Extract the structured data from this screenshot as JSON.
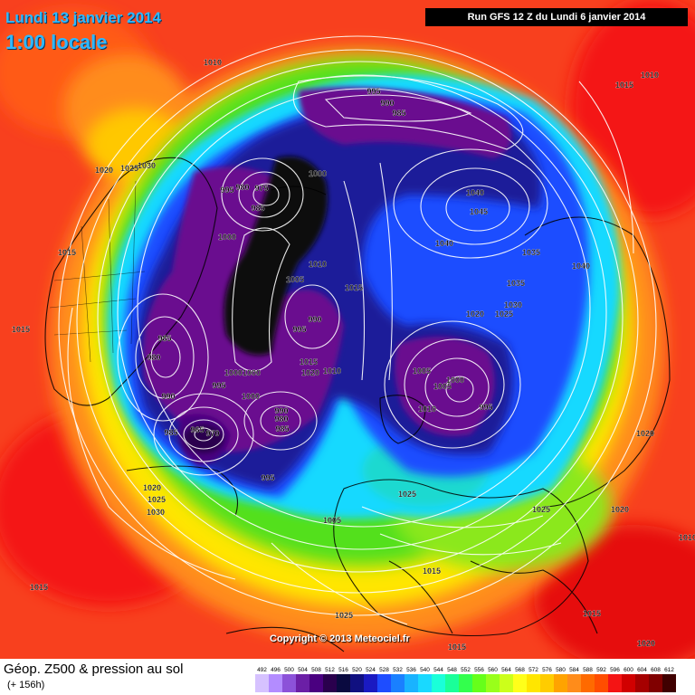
{
  "header": {
    "date": "Lundi 13 janvier 2014",
    "time": "1:00 locale",
    "run": "Run GFS 12 Z du Lundi 6 janvier 2014"
  },
  "copyright": "Copyright © 2013 Meteociel.fr",
  "footer": {
    "title": "Géop. Z500 & pression au sol",
    "subtitle": "(+ 156h)"
  },
  "colors": {
    "ocean_bg": "#f8401e",
    "red": "#f41414",
    "orange": "#ff8c1a",
    "yellow": "#ffe600",
    "green": "#52e01a",
    "cyan": "#19d9ff",
    "blue": "#1e4dff",
    "navy": "#1a1a99",
    "purple": "#6b0f8f",
    "black": "#0a0a0a"
  },
  "scale": {
    "labels": [
      "492",
      "496",
      "500",
      "504",
      "508",
      "512",
      "516",
      "520",
      "524",
      "528",
      "532",
      "536",
      "540",
      "544",
      "548",
      "552",
      "556",
      "560",
      "564",
      "568",
      "572",
      "576",
      "580",
      "584",
      "588",
      "592",
      "596",
      "600",
      "604",
      "608",
      "612"
    ],
    "colors": [
      "#d6c2ff",
      "#b38cff",
      "#8c52d9",
      "#6b1fa6",
      "#4a0080",
      "#2a004d",
      "#0a0a40",
      "#101080",
      "#1a1ac2",
      "#1e4dff",
      "#1a80ff",
      "#19b3ff",
      "#19d9ff",
      "#1affd9",
      "#1aff99",
      "#33ff4d",
      "#66ff1a",
      "#99ff1a",
      "#ccff1a",
      "#ffff1a",
      "#ffe600",
      "#ffcc00",
      "#ffa300",
      "#ff8c1a",
      "#ff6a00",
      "#ff4d00",
      "#f41414",
      "#d10000",
      "#a60000",
      "#800000",
      "#400000"
    ]
  },
  "pressure_labels": [
    {
      "text": "1010"
    },
    {
      "text": "1015"
    },
    {
      "text": "1010"
    },
    {
      "text": "995"
    },
    {
      "text": "990"
    },
    {
      "text": "985"
    },
    {
      "text": "1020"
    },
    {
      "text": "1025"
    },
    {
      "text": "1030"
    },
    {
      "text": "995"
    },
    {
      "text": "980"
    },
    {
      "text": "975"
    },
    {
      "text": "985"
    },
    {
      "text": "1000"
    },
    {
      "text": "1040"
    },
    {
      "text": "1045"
    },
    {
      "text": "1000"
    },
    {
      "text": "1015"
    },
    {
      "text": "1040"
    },
    {
      "text": "1035"
    },
    {
      "text": "1040"
    },
    {
      "text": "1010"
    },
    {
      "text": "1005"
    },
    {
      "text": "1015"
    },
    {
      "text": "1035"
    },
    {
      "text": "1030"
    },
    {
      "text": "1025"
    },
    {
      "text": "1020"
    },
    {
      "text": "1015"
    },
    {
      "text": "990"
    },
    {
      "text": "995"
    },
    {
      "text": "985"
    },
    {
      "text": "980"
    },
    {
      "text": "1015"
    },
    {
      "text": "1020"
    },
    {
      "text": "1010"
    },
    {
      "text": "1005"
    },
    {
      "text": "1000"
    },
    {
      "text": "1000"
    },
    {
      "text": "1000"
    },
    {
      "text": "995"
    },
    {
      "text": "990"
    },
    {
      "text": "1000"
    },
    {
      "text": "990"
    },
    {
      "text": "980"
    },
    {
      "text": "985"
    },
    {
      "text": "1005"
    },
    {
      "text": "1010"
    },
    {
      "text": "995"
    },
    {
      "text": "985"
    },
    {
      "text": "965"
    },
    {
      "text": "970"
    },
    {
      "text": "1020"
    },
    {
      "text": "995"
    },
    {
      "text": "1020"
    },
    {
      "text": "1025"
    },
    {
      "text": "1030"
    },
    {
      "text": "1025"
    },
    {
      "text": "1025"
    },
    {
      "text": "1020"
    },
    {
      "text": "1005"
    },
    {
      "text": "1015"
    },
    {
      "text": "1015"
    },
    {
      "text": "1015"
    },
    {
      "text": "1025"
    },
    {
      "text": "1015"
    },
    {
      "text": "1020"
    },
    {
      "text": "1010"
    }
  ]
}
